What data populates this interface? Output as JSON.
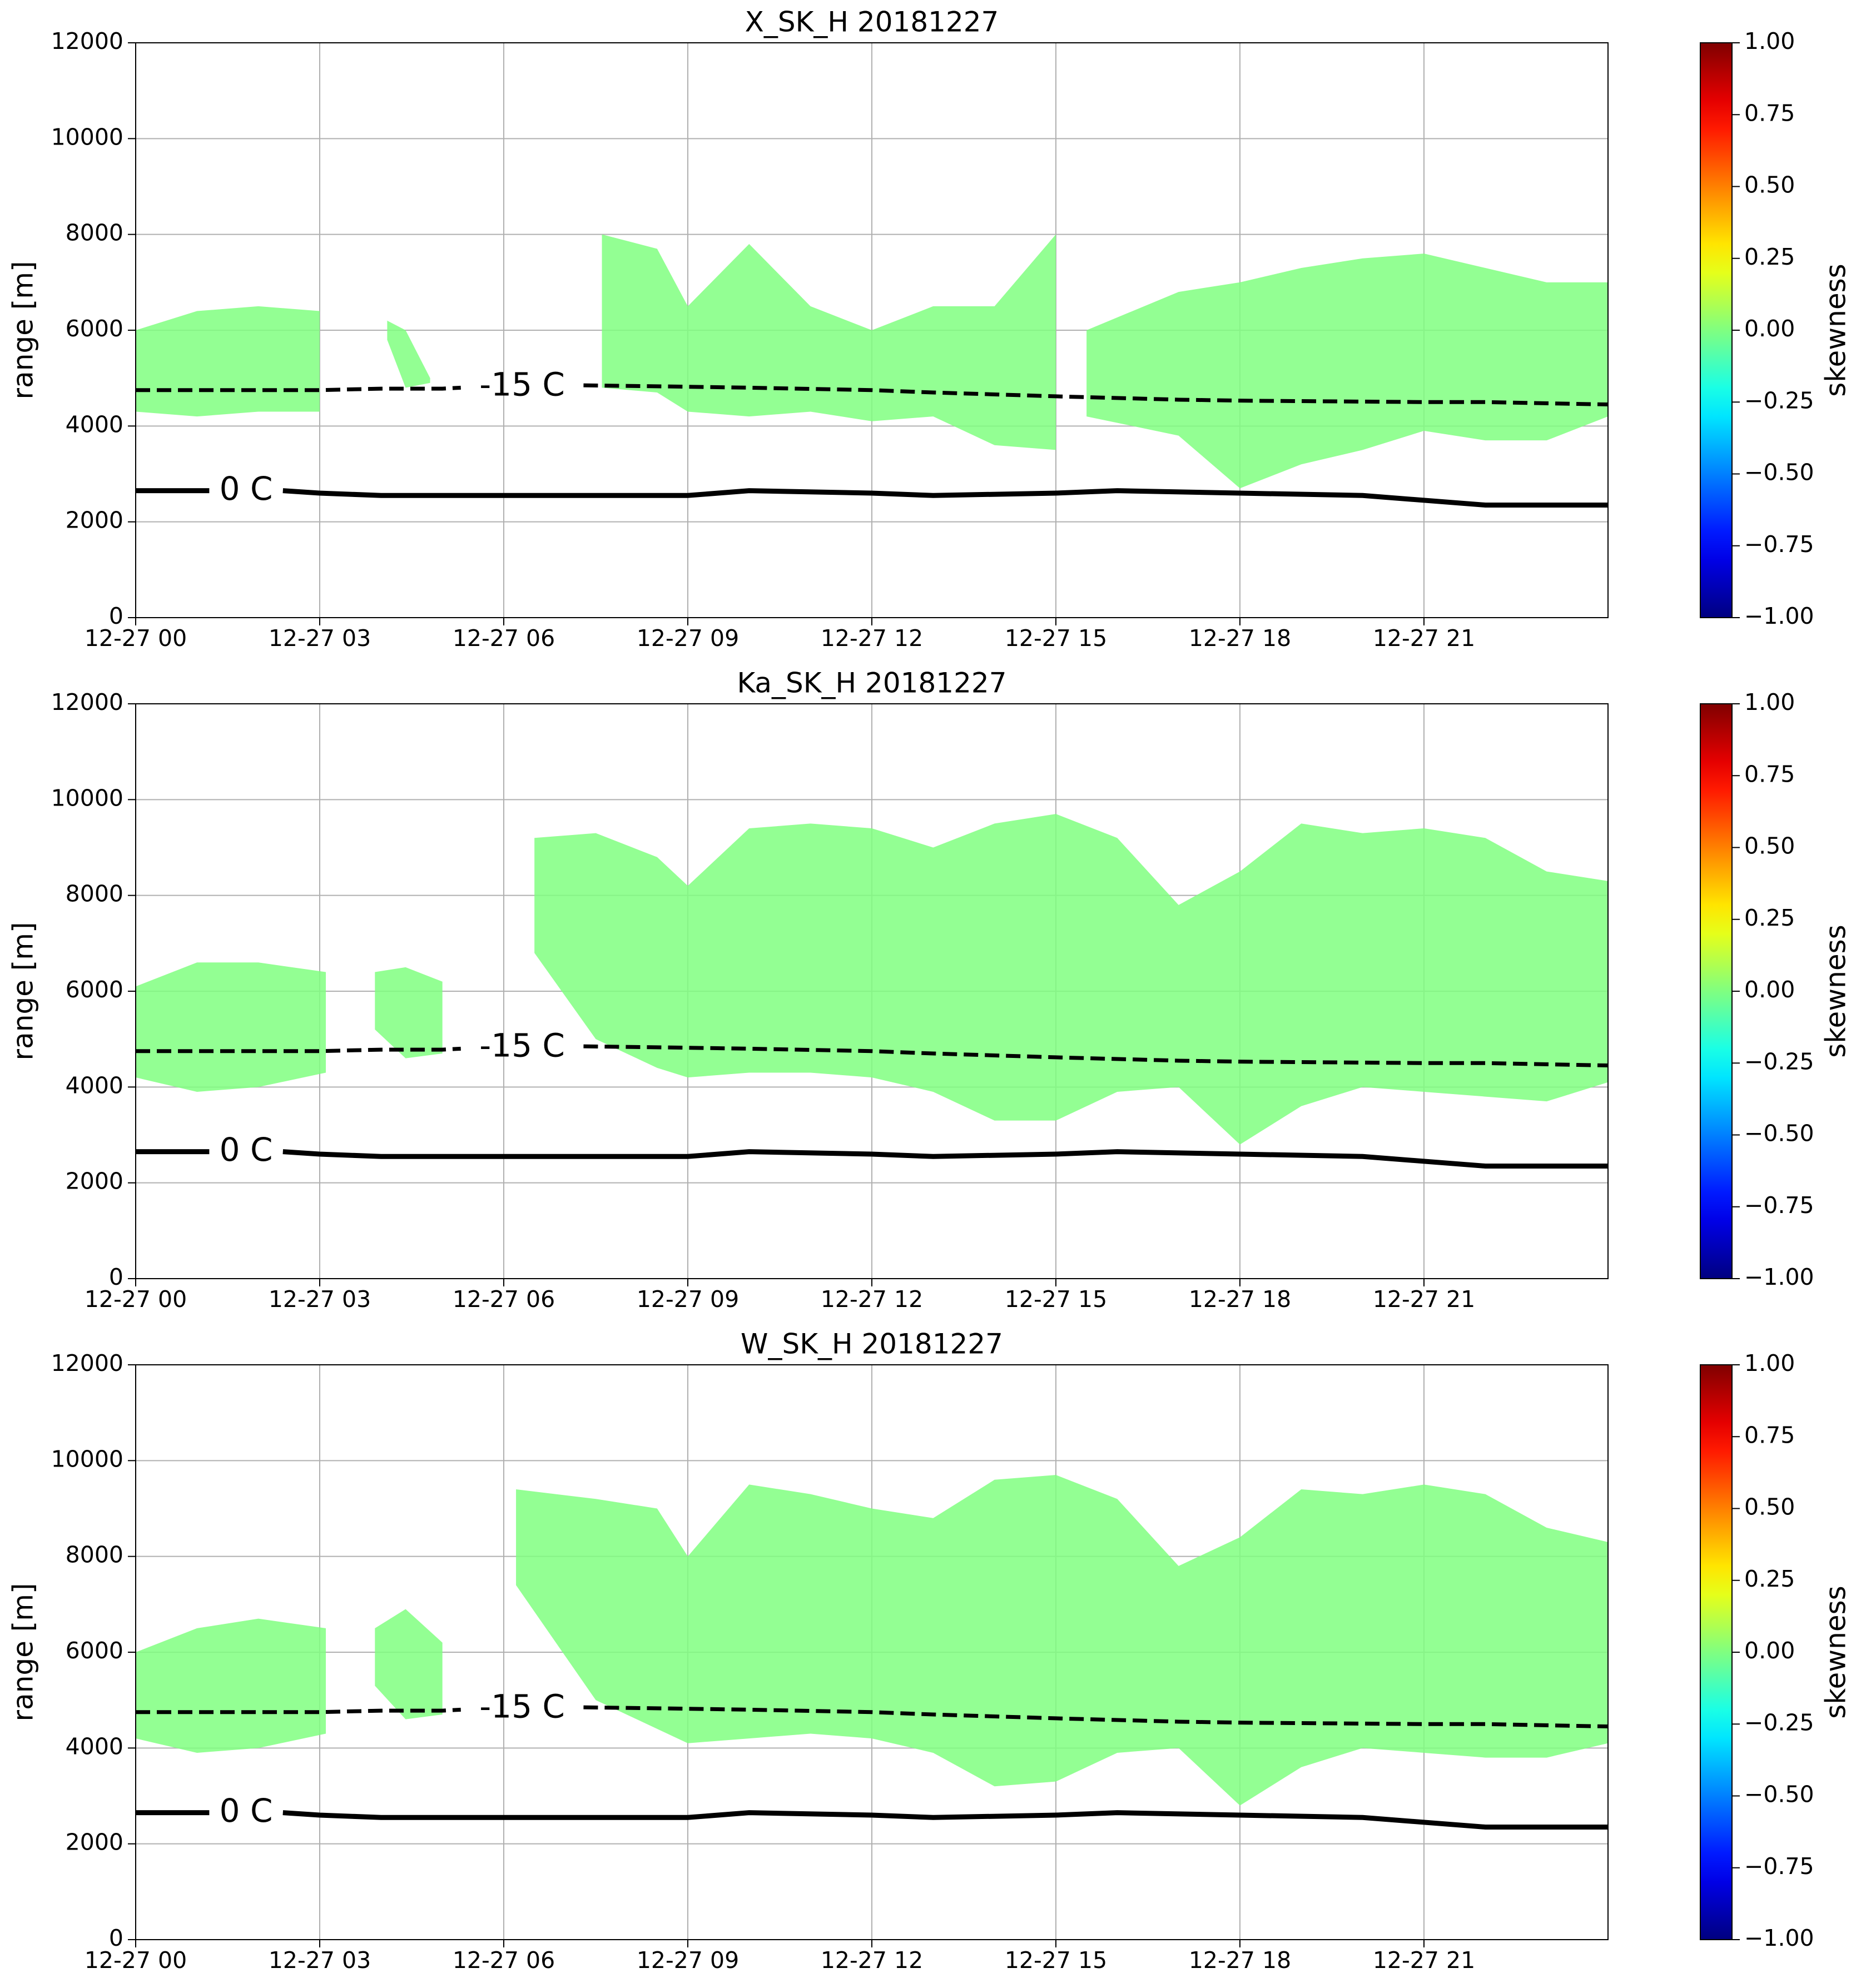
{
  "chart_data": [
    {
      "type": "heatmap",
      "title": "X_SK_H 20181227",
      "ylabel": "range [m]",
      "xlim": [
        0,
        24
      ],
      "xticks": [
        {
          "value": 0,
          "label": "12-27 00"
        },
        {
          "value": 3,
          "label": "12-27 03"
        },
        {
          "value": 6,
          "label": "12-27 06"
        },
        {
          "value": 9,
          "label": "12-27 09"
        },
        {
          "value": 12,
          "label": "12-27 12"
        },
        {
          "value": 15,
          "label": "12-27 15"
        },
        {
          "value": 18,
          "label": "12-27 18"
        },
        {
          "value": 21,
          "label": "12-27 21"
        }
      ],
      "ylim": [
        0,
        12000
      ],
      "yticks": [
        0,
        2000,
        4000,
        6000,
        8000,
        10000,
        12000
      ],
      "grid": true,
      "echo": {
        "x": [
          0,
          1,
          2,
          3,
          3.1,
          4.1,
          4.4,
          4.8,
          5,
          7.6,
          8.5,
          9,
          10,
          11,
          12,
          13,
          14,
          15,
          15.1,
          15.5,
          17,
          18,
          19,
          20,
          21,
          22,
          23,
          24
        ],
        "top": [
          6000,
          6400,
          6500,
          6400,
          null,
          6200,
          6000,
          5000,
          null,
          8000,
          7700,
          6500,
          7800,
          6500,
          6000,
          6500,
          6500,
          8000,
          null,
          6000,
          6800,
          7000,
          7300,
          7500,
          7600,
          7300,
          7000,
          7000
        ],
        "base": [
          4300,
          4200,
          4300,
          4300,
          null,
          5800,
          4800,
          4900,
          null,
          4800,
          4700,
          4300,
          4200,
          4300,
          4100,
          4200,
          3600,
          3500,
          null,
          4200,
          3800,
          2700,
          3200,
          3500,
          3900,
          3700,
          3700,
          4200
        ]
      },
      "series": [
        {
          "name": "-15 C",
          "color": "#000000",
          "dashed": true,
          "x": [
            0,
            1,
            2,
            3,
            4,
            5,
            5.3,
            6.5,
            7.3,
            9,
            10,
            12,
            13,
            15,
            17,
            18,
            21,
            22,
            24
          ],
          "values": [
            4750,
            4750,
            4750,
            4750,
            4780,
            4780,
            4800,
            null,
            4850,
            4820,
            4800,
            4750,
            4700,
            4620,
            4550,
            4530,
            4500,
            4500,
            4450
          ]
        },
        {
          "name": "0 C",
          "color": "#000000",
          "dashed": false,
          "x": [
            0,
            1.2,
            1.8,
            2.4,
            3,
            4,
            6,
            9,
            10,
            12,
            13,
            15,
            16,
            18,
            20,
            22,
            24
          ],
          "values": [
            2650,
            2650,
            null,
            2650,
            2600,
            2550,
            2550,
            2550,
            2650,
            2600,
            2550,
            2600,
            2650,
            2600,
            2550,
            2350,
            2350
          ]
        }
      ],
      "colorbar": {
        "label": "skewness",
        "colormap": "jet",
        "clim": [
          -1,
          1
        ],
        "ticks": [
          {
            "value": 1,
            "label": "1.00"
          },
          {
            "value": 0.75,
            "label": "0.75"
          },
          {
            "value": 0.5,
            "label": "0.50"
          },
          {
            "value": 0.25,
            "label": "0.25"
          },
          {
            "value": 0,
            "label": "0.00"
          },
          {
            "value": -0.25,
            "label": "−0.25"
          },
          {
            "value": -0.5,
            "label": "−0.50"
          },
          {
            "value": -0.75,
            "label": "−0.75"
          },
          {
            "value": -1,
            "label": "−1.00"
          }
        ]
      }
    },
    {
      "type": "heatmap",
      "title": "Ka_SK_H 20181227",
      "ylabel": "range [m]",
      "xlim": [
        0,
        24
      ],
      "xticks": [
        {
          "value": 0,
          "label": "12-27 00"
        },
        {
          "value": 3,
          "label": "12-27 03"
        },
        {
          "value": 6,
          "label": "12-27 06"
        },
        {
          "value": 9,
          "label": "12-27 09"
        },
        {
          "value": 12,
          "label": "12-27 12"
        },
        {
          "value": 15,
          "label": "12-27 15"
        },
        {
          "value": 18,
          "label": "12-27 18"
        },
        {
          "value": 21,
          "label": "12-27 21"
        }
      ],
      "ylim": [
        0,
        12000
      ],
      "yticks": [
        0,
        2000,
        4000,
        6000,
        8000,
        10000,
        12000
      ],
      "grid": true,
      "echo": {
        "x": [
          0,
          1,
          2,
          3.1,
          3.2,
          3.9,
          4.4,
          5,
          5.1,
          6.5,
          7.5,
          8.5,
          9,
          10,
          11,
          12,
          13,
          14,
          15,
          16,
          17,
          18,
          19,
          20,
          21,
          22,
          23,
          24
        ],
        "top": [
          6100,
          6600,
          6600,
          6400,
          null,
          6400,
          6500,
          6200,
          null,
          9200,
          9300,
          8800,
          8200,
          9400,
          9500,
          9400,
          9000,
          9500,
          9700,
          9200,
          7800,
          8500,
          9500,
          9300,
          9400,
          9200,
          8500,
          8300
        ],
        "base": [
          4200,
          3900,
          4000,
          4300,
          null,
          5200,
          4600,
          4700,
          null,
          6800,
          5000,
          4400,
          4200,
          4300,
          4300,
          4200,
          3900,
          3300,
          3300,
          3900,
          4000,
          2800,
          3600,
          4000,
          3900,
          3800,
          3700,
          4100
        ]
      },
      "series": [
        {
          "name": "-15 C",
          "color": "#000000",
          "dashed": true,
          "x": [
            0,
            1,
            2,
            3,
            4,
            5,
            5.3,
            6.5,
            7.3,
            9,
            10,
            12,
            13,
            15,
            17,
            18,
            21,
            22,
            24
          ],
          "values": [
            4750,
            4750,
            4750,
            4750,
            4780,
            4780,
            4800,
            null,
            4850,
            4820,
            4800,
            4750,
            4700,
            4620,
            4550,
            4530,
            4500,
            4500,
            4450
          ]
        },
        {
          "name": "0 C",
          "color": "#000000",
          "dashed": false,
          "x": [
            0,
            1.2,
            1.8,
            2.4,
            3,
            4,
            6,
            9,
            10,
            12,
            13,
            15,
            16,
            18,
            20,
            22,
            24
          ],
          "values": [
            2650,
            2650,
            null,
            2650,
            2600,
            2550,
            2550,
            2550,
            2650,
            2600,
            2550,
            2600,
            2650,
            2600,
            2550,
            2350,
            2350
          ]
        }
      ],
      "colorbar": {
        "label": "skewness",
        "colormap": "jet",
        "clim": [
          -1,
          1
        ],
        "ticks": [
          {
            "value": 1,
            "label": "1.00"
          },
          {
            "value": 0.75,
            "label": "0.75"
          },
          {
            "value": 0.5,
            "label": "0.50"
          },
          {
            "value": 0.25,
            "label": "0.25"
          },
          {
            "value": 0,
            "label": "0.00"
          },
          {
            "value": -0.25,
            "label": "−0.25"
          },
          {
            "value": -0.5,
            "label": "−0.50"
          },
          {
            "value": -0.75,
            "label": "−0.75"
          },
          {
            "value": -1,
            "label": "−1.00"
          }
        ]
      }
    },
    {
      "type": "heatmap",
      "title": "W_SK_H 20181227",
      "ylabel": "range [m]",
      "xlim": [
        0,
        24
      ],
      "xticks": [
        {
          "value": 0,
          "label": "12-27 00"
        },
        {
          "value": 3,
          "label": "12-27 03"
        },
        {
          "value": 6,
          "label": "12-27 06"
        },
        {
          "value": 9,
          "label": "12-27 09"
        },
        {
          "value": 12,
          "label": "12-27 12"
        },
        {
          "value": 15,
          "label": "12-27 15"
        },
        {
          "value": 18,
          "label": "12-27 18"
        },
        {
          "value": 21,
          "label": "12-27 21"
        }
      ],
      "ylim": [
        0,
        12000
      ],
      "yticks": [
        0,
        2000,
        4000,
        6000,
        8000,
        10000,
        12000
      ],
      "grid": true,
      "echo": {
        "x": [
          0,
          1,
          2,
          3.1,
          3.2,
          3.9,
          4.4,
          5,
          5.1,
          6.2,
          7.5,
          8.5,
          9,
          10,
          11,
          12,
          13,
          14,
          15,
          16,
          17,
          18,
          19,
          20,
          21,
          22,
          23,
          24
        ],
        "top": [
          6000,
          6500,
          6700,
          6500,
          null,
          6500,
          6900,
          6200,
          null,
          9400,
          9200,
          9000,
          8000,
          9500,
          9300,
          9000,
          8800,
          9600,
          9700,
          9200,
          7800,
          8400,
          9400,
          9300,
          9500,
          9300,
          8600,
          8300
        ],
        "base": [
          4200,
          3900,
          4000,
          4300,
          null,
          5300,
          4600,
          4700,
          null,
          7400,
          5000,
          4400,
          4100,
          4200,
          4300,
          4200,
          3900,
          3200,
          3300,
          3900,
          4000,
          2800,
          3600,
          4000,
          3900,
          3800,
          3800,
          4100
        ]
      },
      "series": [
        {
          "name": "-15 C",
          "color": "#000000",
          "dashed": true,
          "x": [
            0,
            1,
            2,
            3,
            4,
            5,
            5.3,
            6.5,
            7.3,
            9,
            10,
            12,
            13,
            15,
            17,
            18,
            21,
            22,
            24
          ],
          "values": [
            4750,
            4750,
            4750,
            4750,
            4780,
            4780,
            4800,
            null,
            4850,
            4820,
            4800,
            4750,
            4700,
            4620,
            4550,
            4530,
            4500,
            4500,
            4450
          ]
        },
        {
          "name": "0 C",
          "color": "#000000",
          "dashed": false,
          "x": [
            0,
            1.2,
            1.8,
            2.4,
            3,
            4,
            6,
            9,
            10,
            12,
            13,
            15,
            16,
            18,
            20,
            22,
            24
          ],
          "values": [
            2650,
            2650,
            null,
            2650,
            2600,
            2550,
            2550,
            2550,
            2650,
            2600,
            2550,
            2600,
            2650,
            2600,
            2550,
            2350,
            2350
          ]
        }
      ],
      "colorbar": {
        "label": "skewness",
        "colormap": "jet",
        "clim": [
          -1,
          1
        ],
        "ticks": [
          {
            "value": 1,
            "label": "1.00"
          },
          {
            "value": 0.75,
            "label": "0.75"
          },
          {
            "value": 0.5,
            "label": "0.50"
          },
          {
            "value": 0.25,
            "label": "0.25"
          },
          {
            "value": 0,
            "label": "0.00"
          },
          {
            "value": -0.25,
            "label": "−0.25"
          },
          {
            "value": -0.5,
            "label": "−0.50"
          },
          {
            "value": -0.75,
            "label": "−0.75"
          },
          {
            "value": -1,
            "label": "−1.00"
          }
        ]
      }
    }
  ]
}
